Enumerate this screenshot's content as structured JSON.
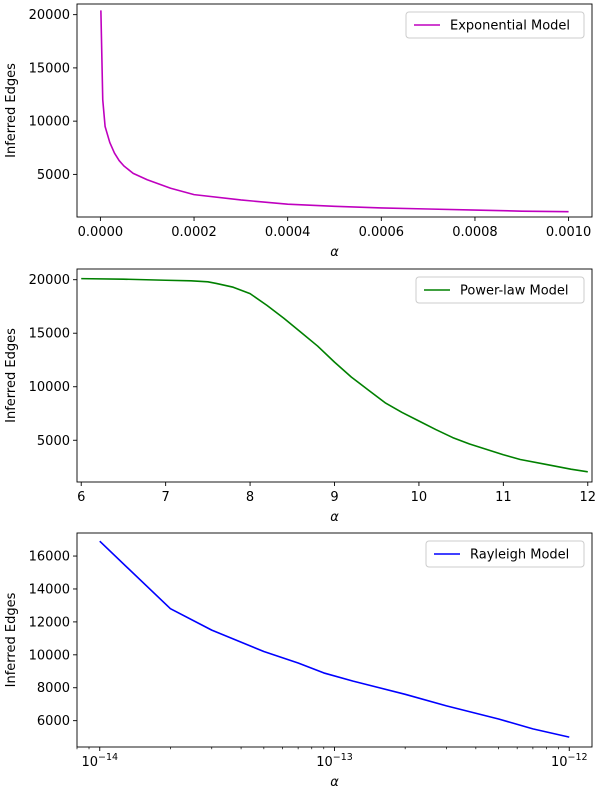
{
  "chart_data": [
    {
      "type": "line",
      "xlabel": "α",
      "ylabel": "Inferred Edges",
      "xscale": "linear",
      "xlim": [
        -5e-05,
        0.00105
      ],
      "ylim": [
        1000,
        21000
      ],
      "xticks": [
        {
          "v": 0.0,
          "label": "0.0000"
        },
        {
          "v": 0.0002,
          "label": "0.0002"
        },
        {
          "v": 0.0004,
          "label": "0.0004"
        },
        {
          "v": 0.0006,
          "label": "0.0006"
        },
        {
          "v": 0.0008,
          "label": "0.0008"
        },
        {
          "v": 0.001,
          "label": "0.0010"
        }
      ],
      "yticks": [
        {
          "v": 5000,
          "label": "5000"
        },
        {
          "v": 10000,
          "label": "10000"
        },
        {
          "v": 15000,
          "label": "15000"
        },
        {
          "v": 20000,
          "label": "20000"
        }
      ],
      "legend_position": "top-right",
      "series": [
        {
          "name": "Exponential Model",
          "color": "#bf00bf",
          "x": [
            1e-06,
            5e-06,
            1e-05,
            2e-05,
            3e-05,
            4e-05,
            5e-05,
            7e-05,
            0.0001,
            0.00015,
            0.0002,
            0.0003,
            0.0004,
            0.0005,
            0.0006,
            0.0007,
            0.0008,
            0.0009,
            0.001
          ],
          "y": [
            20400,
            12000,
            9500,
            8000,
            7000,
            6300,
            5800,
            5100,
            4500,
            3700,
            3100,
            2600,
            2200,
            2000,
            1850,
            1750,
            1650,
            1550,
            1500
          ]
        }
      ]
    },
    {
      "type": "line",
      "xlabel": "α",
      "ylabel": "Inferred Edges",
      "xscale": "linear",
      "xlim": [
        5.95,
        12.05
      ],
      "ylim": [
        1100,
        21000
      ],
      "xticks": [
        {
          "v": 6,
          "label": "6"
        },
        {
          "v": 7,
          "label": "7"
        },
        {
          "v": 8,
          "label": "8"
        },
        {
          "v": 9,
          "label": "9"
        },
        {
          "v": 10,
          "label": "10"
        },
        {
          "v": 11,
          "label": "11"
        },
        {
          "v": 12,
          "label": "12"
        }
      ],
      "yticks": [
        {
          "v": 5000,
          "label": "5000"
        },
        {
          "v": 10000,
          "label": "10000"
        },
        {
          "v": 15000,
          "label": "15000"
        },
        {
          "v": 20000,
          "label": "20000"
        }
      ],
      "legend_position": "top-right",
      "series": [
        {
          "name": "Power-law Model",
          "color": "#008000",
          "x": [
            6.0,
            6.5,
            7.0,
            7.3,
            7.5,
            7.6,
            7.8,
            8.0,
            8.2,
            8.4,
            8.6,
            8.8,
            9.0,
            9.2,
            9.4,
            9.6,
            9.8,
            10.0,
            10.2,
            10.4,
            10.6,
            10.8,
            11.0,
            11.2,
            11.5,
            11.8,
            12.0
          ],
          "y": [
            20100,
            20050,
            19950,
            19900,
            19800,
            19650,
            19300,
            18700,
            17600,
            16400,
            15100,
            13800,
            12300,
            10900,
            9700,
            8500,
            7600,
            6800,
            6000,
            5250,
            4650,
            4150,
            3650,
            3200,
            2750,
            2300,
            2050
          ]
        }
      ]
    },
    {
      "type": "line",
      "xlabel": "α",
      "ylabel": "Inferred Edges",
      "xscale": "log",
      "xlim": [
        8e-15,
        1.25e-12
      ],
      "ylim": [
        4400,
        17400
      ],
      "xticks": [
        {
          "v": 1e-14,
          "label": "10",
          "exp": "−14"
        },
        {
          "v": 1e-13,
          "label": "10",
          "exp": "−13"
        },
        {
          "v": 1e-12,
          "label": "10",
          "exp": "−12"
        }
      ],
      "yticks": [
        {
          "v": 6000,
          "label": "6000"
        },
        {
          "v": 8000,
          "label": "8000"
        },
        {
          "v": 10000,
          "label": "10000"
        },
        {
          "v": 12000,
          "label": "12000"
        },
        {
          "v": 14000,
          "label": "14000"
        },
        {
          "v": 16000,
          "label": "16000"
        }
      ],
      "legend_position": "top-right",
      "series": [
        {
          "name": "Rayleigh Model",
          "color": "#0000ff",
          "x": [
            1e-14,
            2e-14,
            3e-14,
            5e-14,
            7e-14,
            9e-14,
            1.2e-13,
            2e-13,
            3e-13,
            5e-13,
            7e-13,
            1e-12
          ],
          "y": [
            16900,
            12800,
            11500,
            10200,
            9500,
            8900,
            8400,
            7600,
            6900,
            6100,
            5500,
            5000
          ]
        }
      ]
    }
  ]
}
